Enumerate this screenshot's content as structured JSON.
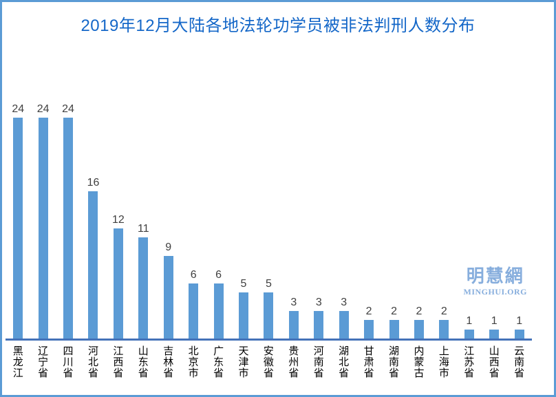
{
  "frame": {
    "border_color": "#5b9bd5"
  },
  "title": {
    "text": "2019年12月大陆各地法轮功学员被非法判刑人数分布",
    "color": "#1467c8"
  },
  "watermark": {
    "logo": "明慧網",
    "site": "MINGHUI.ORG",
    "color": "#87aedd"
  },
  "chart_data": {
    "type": "bar",
    "title": "2019年12月大陆各地法轮功学员被非法判刑人数分布",
    "categories": [
      "黑龙江",
      "辽宁省",
      "四川省",
      "河北省",
      "江西省",
      "山东省",
      "吉林省",
      "北京市",
      "广东省",
      "天津市",
      "安徽省",
      "贵州省",
      "河南省",
      "湖北省",
      "甘肃省",
      "湖南省",
      "内蒙古",
      "上海市",
      "江苏省",
      "山西省",
      "云南省"
    ],
    "values": [
      24,
      24,
      24,
      16,
      12,
      11,
      9,
      6,
      6,
      5,
      5,
      3,
      3,
      3,
      2,
      2,
      2,
      2,
      1,
      1,
      1
    ],
    "xlabel": "",
    "ylabel": "",
    "ylim": [
      0,
      24
    ],
    "grid": false,
    "legend": false,
    "data_labels": true,
    "bar_color": "#5b9bd5",
    "axis_color": "#4472b8",
    "value_label_color": "#404040",
    "category_label_orientation": "vertical"
  }
}
